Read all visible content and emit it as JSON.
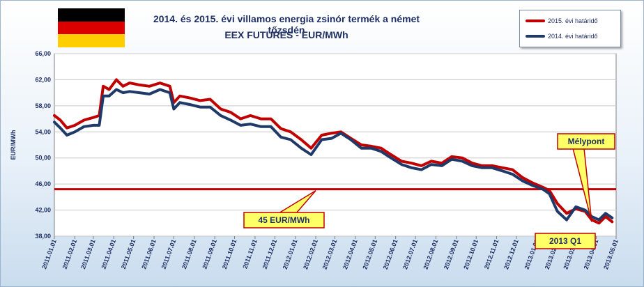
{
  "chart_data": {
    "type": "line",
    "title": "2014. és 2015. évi villamos energia zsinór termék a német tőzsdén",
    "subtitle": "EEX FUTURES - EUR/MWh",
    "xlabel": "",
    "ylabel": "EUR/MWh",
    "ylim": [
      38,
      66
    ],
    "y_ticks": [
      "38,00",
      "42,00",
      "46,00",
      "50,00",
      "54,00",
      "58,00",
      "62,00",
      "66,00"
    ],
    "x_ticks": [
      "2011.01.01",
      "2011.02.01",
      "2011.03.01",
      "2011.04.01",
      "2011.05.01",
      "2011.06.01",
      "2011.07.01",
      "2011.08.01",
      "2011.09.01",
      "2011.10.01",
      "2011.11.01",
      "2011.12.01",
      "2012.01.01",
      "2012.02.01",
      "2012.03.01",
      "2012.04.01",
      "2012.05.01",
      "2012.06.01",
      "2012.07.01",
      "2012.08.01",
      "2012.09.01",
      "2012.10.01",
      "2012.11.01",
      "2012.12.01",
      "2013.01.01",
      "2013.02.01",
      "2013.03.01",
      "2013.04.01",
      "2013.05.01"
    ],
    "grid": true,
    "legend_position": "top-right",
    "series": [
      {
        "name": "2015. évi határidő",
        "color": "#c00000",
        "x": [
          "2011.01.01",
          "2011.01.10",
          "2011.01.20",
          "2011.02.01",
          "2011.02.15",
          "2011.03.01",
          "2011.03.10",
          "2011.03.16",
          "2011.03.25",
          "2011.04.05",
          "2011.04.15",
          "2011.04.25",
          "2011.05.10",
          "2011.05.25",
          "2011.06.10",
          "2011.06.25",
          "2011.07.01",
          "2011.07.10",
          "2011.07.25",
          "2011.08.10",
          "2011.08.25",
          "2011.09.10",
          "2011.09.25",
          "2011.10.10",
          "2011.10.25",
          "2011.11.10",
          "2011.11.25",
          "2011.12.10",
          "2011.12.25",
          "2012.01.10",
          "2012.01.25",
          "2012.02.10",
          "2012.02.25",
          "2012.03.10",
          "2012.03.25",
          "2012.04.10",
          "2012.04.25",
          "2012.05.10",
          "2012.05.25",
          "2012.06.10",
          "2012.06.25",
          "2012.07.10",
          "2012.07.25",
          "2012.08.10",
          "2012.08.25",
          "2012.09.10",
          "2012.09.25",
          "2012.10.10",
          "2012.10.25",
          "2012.11.10",
          "2012.11.25",
          "2012.12.10",
          "2012.12.25",
          "2013.01.10",
          "2013.01.20",
          "2013.02.01",
          "2013.02.15",
          "2013.03.01",
          "2013.03.15",
          "2013.03.25",
          "2013.04.05",
          "2013.04.15",
          "2013.04.25"
        ],
        "values": [
          56.5,
          55.8,
          54.6,
          55.0,
          55.8,
          56.2,
          56.5,
          61.0,
          60.5,
          62.0,
          61.0,
          61.5,
          61.2,
          61.0,
          61.5,
          61.0,
          58.5,
          59.5,
          59.2,
          58.8,
          59.0,
          57.5,
          57.0,
          56.0,
          56.5,
          56.0,
          56.0,
          54.5,
          54.0,
          52.8,
          51.5,
          53.5,
          53.8,
          54.0,
          53.0,
          52.0,
          51.8,
          51.5,
          50.5,
          49.5,
          49.2,
          48.8,
          49.5,
          49.2,
          50.2,
          50.0,
          49.2,
          48.8,
          48.8,
          48.5,
          48.2,
          47.0,
          46.2,
          45.5,
          45.0,
          43.0,
          41.5,
          42.2,
          41.8,
          40.5,
          40.0,
          41.0,
          40.2
        ]
      },
      {
        "name": "2014. évi határidő",
        "color": "#1f3a68",
        "x": [
          "2011.01.01",
          "2011.01.10",
          "2011.01.20",
          "2011.02.01",
          "2011.02.15",
          "2011.03.01",
          "2011.03.10",
          "2011.03.16",
          "2011.03.25",
          "2011.04.05",
          "2011.04.15",
          "2011.04.25",
          "2011.05.10",
          "2011.05.25",
          "2011.06.10",
          "2011.06.25",
          "2011.07.01",
          "2011.07.10",
          "2011.07.25",
          "2011.08.10",
          "2011.08.25",
          "2011.09.10",
          "2011.09.25",
          "2011.10.10",
          "2011.10.25",
          "2011.11.10",
          "2011.11.25",
          "2011.12.10",
          "2011.12.25",
          "2012.01.10",
          "2012.01.25",
          "2012.02.10",
          "2012.02.25",
          "2012.03.10",
          "2012.03.25",
          "2012.04.10",
          "2012.04.25",
          "2012.05.10",
          "2012.05.25",
          "2012.06.10",
          "2012.06.25",
          "2012.07.10",
          "2012.07.25",
          "2012.08.10",
          "2012.08.25",
          "2012.09.10",
          "2012.09.25",
          "2012.10.10",
          "2012.10.25",
          "2012.11.10",
          "2012.11.25",
          "2012.12.10",
          "2012.12.25",
          "2013.01.10",
          "2013.01.20",
          "2013.02.01",
          "2013.02.15",
          "2013.03.01",
          "2013.03.15",
          "2013.03.25",
          "2013.04.05",
          "2013.04.15",
          "2013.04.25"
        ],
        "values": [
          55.5,
          54.6,
          53.5,
          54.0,
          54.8,
          55.0,
          55.0,
          59.5,
          59.5,
          60.5,
          60.0,
          60.2,
          60.0,
          59.8,
          60.5,
          60.0,
          57.5,
          58.5,
          58.2,
          57.8,
          57.8,
          56.5,
          55.8,
          55.0,
          55.2,
          54.8,
          54.8,
          53.2,
          52.8,
          51.5,
          50.5,
          52.8,
          53.0,
          53.8,
          52.8,
          51.5,
          51.5,
          51.0,
          50.0,
          49.0,
          48.5,
          48.2,
          49.0,
          48.8,
          49.8,
          49.5,
          48.8,
          48.5,
          48.5,
          48.0,
          47.5,
          46.5,
          45.8,
          45.2,
          44.5,
          41.8,
          40.5,
          42.5,
          42.0,
          41.0,
          40.5,
          41.5,
          40.8
        ]
      }
    ],
    "reference_line": {
      "value": 45.2,
      "color": "#c00000"
    },
    "annotations": [
      {
        "text": "45 EUR/MWh",
        "points_to": {
          "x": "2012.02.01",
          "y": 45.2
        }
      },
      {
        "text": "Mélypont",
        "points_to": {
          "x": "2013.03.25",
          "y": 40.2
        }
      },
      {
        "text": "2013 Q1"
      }
    ]
  },
  "legend": {
    "items": [
      {
        "label": "2015. évi határidő",
        "color": "#c00000"
      },
      {
        "label": "2014. évi határidő",
        "color": "#1f3a68"
      }
    ]
  },
  "flag_colors": [
    "#000000",
    "#dd0000",
    "#ffce00"
  ]
}
